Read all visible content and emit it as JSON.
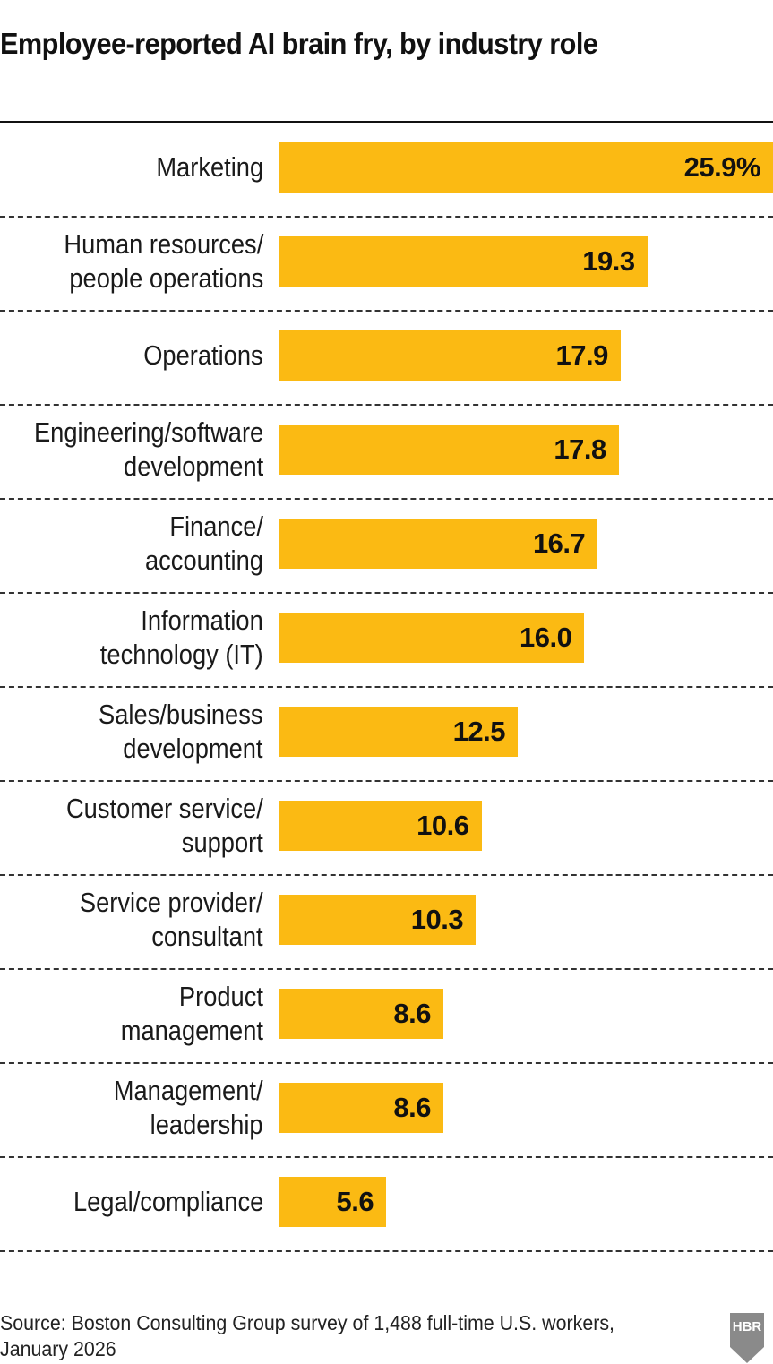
{
  "chart_data": {
    "type": "bar",
    "orientation": "horizontal",
    "title": "Employee-reported AI brain fry, by industry role",
    "xlabel": "",
    "ylabel": "",
    "unit": "%",
    "xlim": [
      0,
      25.9
    ],
    "grid": false,
    "categories": [
      "Marketing",
      "Human resources/\npeople operations",
      "Operations",
      "Engineering/software\ndevelopment",
      "Finance/\naccounting",
      "Information\ntechnology (IT)",
      "Sales/business\ndevelopment",
      "Customer service/\nsupport",
      "Service provider/\nconsultant",
      "Product\nmanagement",
      "Management/\nleadership",
      "Legal/compliance"
    ],
    "values": [
      25.9,
      19.3,
      17.9,
      17.8,
      16.7,
      16.0,
      12.5,
      10.6,
      10.3,
      8.6,
      8.6,
      5.6
    ],
    "data_labels": [
      "25.9%",
      "19.3",
      "17.9",
      "17.8",
      "16.7",
      "16.0",
      "12.5",
      "10.6",
      "10.3",
      "8.6",
      "8.6",
      "5.6"
    ],
    "bar_color": "#fbba13",
    "source": "Source: Boston Consulting Group survey of 1,488 full-time U.S. workers,\nJanuary 2026"
  },
  "logo": {
    "text": "HBR",
    "color": "#8a8a8a"
  }
}
